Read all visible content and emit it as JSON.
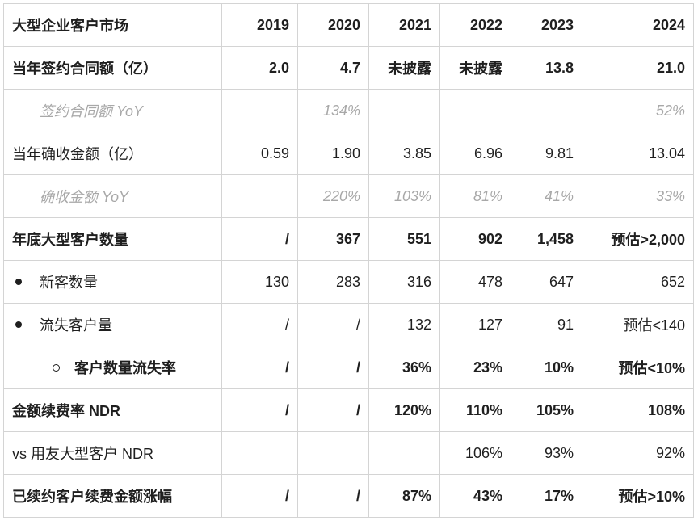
{
  "table": {
    "header": [
      "大型企业客户市场",
      "2019",
      "2020",
      "2021",
      "2022",
      "2023",
      "2024"
    ],
    "rows": [
      {
        "style": "bold",
        "cells": [
          "当年签约合同额（亿）",
          "2.0",
          "4.7",
          "未披露",
          "未披露",
          "13.8",
          "21.0"
        ]
      },
      {
        "style": "sub",
        "cells": [
          "签约合同额 YoY",
          "",
          "134%",
          "",
          "",
          "",
          "52%"
        ]
      },
      {
        "style": "normal",
        "cells": [
          "当年确收金额（亿）",
          "0.59",
          "1.90",
          "3.85",
          "6.96",
          "9.81",
          "13.04"
        ]
      },
      {
        "style": "sub",
        "cells": [
          "确收金额 YoY",
          "",
          "220%",
          "103%",
          "81%",
          "41%",
          "33%"
        ]
      },
      {
        "style": "bold",
        "cells": [
          "年底大型客户数量",
          "/",
          "367",
          "551",
          "902",
          "1,458",
          "预估>2,000"
        ]
      },
      {
        "style": "bullet",
        "cells": [
          "新客数量",
          "130",
          "283",
          "316",
          "478",
          "647",
          "652"
        ]
      },
      {
        "style": "bullet",
        "cells": [
          "流失客户量",
          "/",
          "/",
          "132",
          "127",
          "91",
          "预估<140"
        ]
      },
      {
        "style": "bold circle",
        "cells": [
          "客户数量流失率",
          "/",
          "/",
          "36%",
          "23%",
          "10%",
          "预估<10%"
        ]
      },
      {
        "style": "bold",
        "cells": [
          "金额续费率 NDR",
          "/",
          "/",
          "120%",
          "110%",
          "105%",
          "108%"
        ]
      },
      {
        "style": "normal",
        "cells": [
          "vs 用友大型客户 NDR",
          "",
          "",
          "",
          "106%",
          "93%",
          "92%"
        ]
      },
      {
        "style": "bold",
        "cells": [
          "已续约客户续费金额涨幅",
          "/",
          "/",
          "87%",
          "43%",
          "17%",
          "预估>10%"
        ]
      }
    ]
  }
}
